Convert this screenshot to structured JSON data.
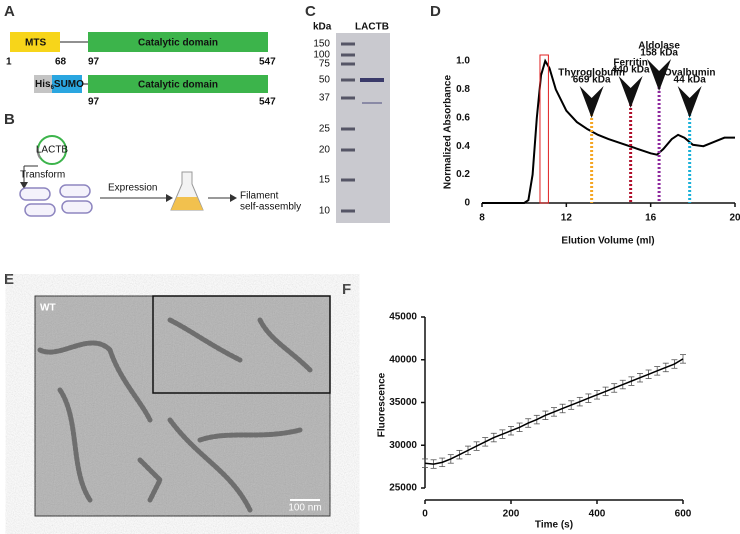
{
  "panel_labels": [
    "A",
    "B",
    "C",
    "D",
    "E",
    "F"
  ],
  "domains": {
    "row1": {
      "mts": "MTS",
      "catalytic": "Catalytic domain",
      "positions": [
        1,
        68,
        97,
        547
      ]
    },
    "row2": {
      "his": "His",
      "his_sub": "6",
      "sumo": "SUMO",
      "catalytic": "Catalytic domain",
      "positions": [
        97,
        547
      ]
    }
  },
  "workflow": {
    "plasmid": "LACTB",
    "transform": "Transform",
    "expression": "Expression",
    "result": [
      "Filament",
      "self-assembly"
    ]
  },
  "gel": {
    "unit": "kDa",
    "lane": "LACTB",
    "markers": [
      150,
      100,
      75,
      50,
      37,
      25,
      20,
      15,
      10
    ]
  },
  "micrograph": {
    "label": "WT",
    "scale_bar": "100 nm"
  },
  "chart_data": [
    {
      "type": "line",
      "x_label": "Elution Volume (ml)",
      "y_label": "Normalized Absorbance",
      "x": [
        8,
        9,
        10,
        10.2,
        10.4,
        10.6,
        10.8,
        11,
        11.2,
        11.5,
        12,
        12.5,
        13,
        13.5,
        14,
        15,
        16,
        16.3,
        16.6,
        17,
        17.3,
        17.6,
        18,
        18.5,
        19,
        19.5,
        20
      ],
      "series": [
        {
          "name": "LACTB",
          "color": "#000000",
          "values": [
            0,
            0,
            0,
            0.02,
            0.2,
            0.6,
            0.9,
            1.0,
            0.95,
            0.8,
            0.65,
            0.57,
            0.52,
            0.48,
            0.45,
            0.4,
            0.35,
            0.34,
            0.38,
            0.45,
            0.48,
            0.46,
            0.41,
            0.4,
            0.43,
            0.46,
            0.46
          ]
        }
      ],
      "xlim": [
        8,
        20
      ],
      "xticks": [
        8,
        12,
        16,
        20
      ],
      "ylim": [
        0,
        1
      ],
      "yticks": [
        0,
        0.2,
        0.4,
        0.6,
        0.8,
        {
          "value": 1,
          "label": "1.0"
        }
      ],
      "highlight": [
        10.75,
        11.15
      ],
      "highlight_color": "#e02020",
      "markers": [
        {
          "name": "Thyroglobulin",
          "size": "669 kDa",
          "x": 13.2,
          "color": "#f5a623"
        },
        {
          "name": "Ferritin",
          "size": "440 kDa",
          "x": 15.05,
          "color": "#b0102c"
        },
        {
          "name": "Aldolase",
          "size": "158 kDa",
          "x": 16.4,
          "color": "#8e2a9e"
        },
        {
          "name": "Ovalbumin",
          "size": "44 kDa",
          "x": 17.85,
          "color": "#1ab0d8"
        }
      ]
    },
    {
      "type": "errorbar",
      "x_label": "Time (s)",
      "y_label": "Fluorescence",
      "x": [
        0,
        20,
        40,
        60,
        80,
        100,
        120,
        140,
        160,
        180,
        200,
        220,
        240,
        260,
        280,
        300,
        320,
        340,
        360,
        380,
        400,
        420,
        440,
        460,
        480,
        500,
        520,
        540,
        560,
        580,
        600
      ],
      "series": [
        {
          "name": "LACTB",
          "color": "#000000",
          "values": [
            27900,
            27800,
            28000,
            28400,
            28900,
            29400,
            29900,
            30400,
            30900,
            31300,
            31700,
            32100,
            32600,
            33000,
            33500,
            33900,
            34300,
            34700,
            35100,
            35500,
            35900,
            36300,
            36700,
            37100,
            37500,
            37900,
            38300,
            38700,
            39100,
            39500,
            40100
          ],
          "errors": [
            500,
            500,
            500,
            500,
            500,
            500,
            500,
            500,
            500,
            500,
            500,
            500,
            500,
            500,
            500,
            500,
            500,
            500,
            500,
            500,
            500,
            500,
            500,
            500,
            500,
            500,
            500,
            500,
            500,
            500,
            500
          ]
        }
      ],
      "xlim": [
        0,
        600
      ],
      "xticks": [
        0,
        200,
        400,
        600
      ],
      "ylim": [
        25000,
        45000
      ],
      "yticks": [
        25000,
        30000,
        35000,
        40000,
        45000
      ]
    }
  ]
}
